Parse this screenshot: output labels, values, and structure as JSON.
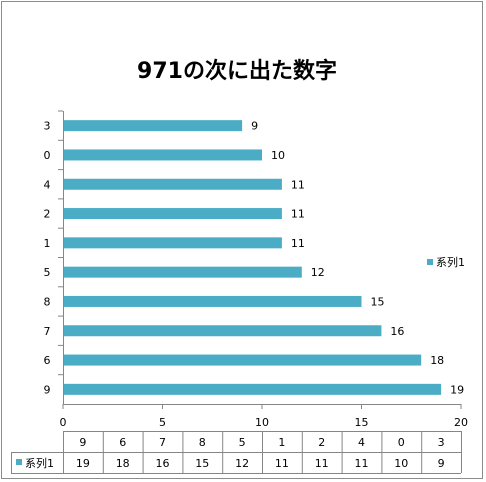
{
  "chart_data": {
    "type": "bar",
    "orientation": "horizontal",
    "title": "971の次に出た数字",
    "categories": [
      "9",
      "6",
      "7",
      "8",
      "5",
      "1",
      "2",
      "4",
      "0",
      "3"
    ],
    "series": [
      {
        "name": "系列1",
        "values": [
          19,
          18,
          16,
          15,
          12,
          11,
          11,
          11,
          10,
          9
        ]
      }
    ],
    "xlim": [
      0,
      20
    ],
    "xticks": [
      "0",
      "5",
      "10",
      "15",
      "20"
    ],
    "grid": false,
    "legend_position": "right",
    "data_table": true,
    "colors": {
      "bar": "#4bacc6",
      "axis": "#868686",
      "table_border": "#868686"
    }
  }
}
